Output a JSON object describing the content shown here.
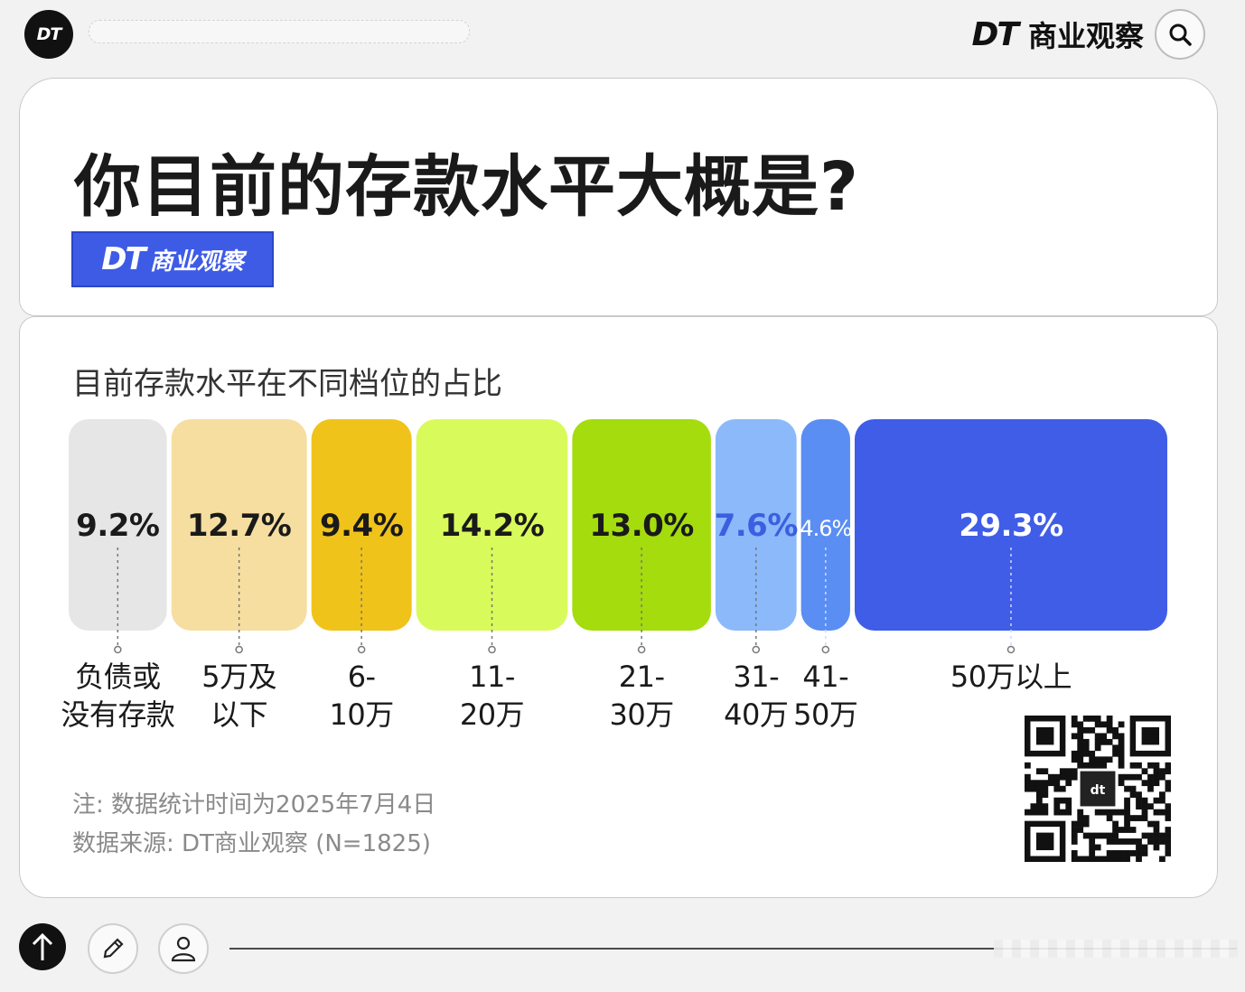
{
  "header": {
    "logo_text": "DT",
    "brand_dt": "DT",
    "brand_cn": "商业观察",
    "search_icon": "search-icon"
  },
  "title": "你目前的存款水平大概是?",
  "badge": {
    "dt": "DT",
    "cn": "商业观察"
  },
  "colors": {
    "brand_blue": "#3e5be6",
    "bar_colors": [
      "#e6e6e6",
      "#f6dea0",
      "#f0c31b",
      "#d9fa5b",
      "#a4dc0e",
      "#8cb9fa",
      "#5b8ef2",
      "#3f5de7"
    ]
  },
  "chart_data": {
    "type": "bar",
    "subtitle": "目前存款水平在不同档位的占比",
    "categories": [
      "负债或没有存款",
      "5万及以下",
      "6-10万",
      "11-20万",
      "21-30万",
      "31-40万",
      "41-50万",
      "50万以上"
    ],
    "category_labels": [
      [
        "负债或",
        "没有存款"
      ],
      [
        "5万及",
        "以下"
      ],
      [
        "6-",
        "10万"
      ],
      [
        "11-",
        "20万"
      ],
      [
        "21-",
        "30万"
      ],
      [
        "31-",
        "40万"
      ],
      [
        "41-",
        "50万"
      ],
      [
        "50万以上"
      ]
    ],
    "values": [
      9.2,
      12.7,
      9.4,
      14.2,
      13.0,
      7.6,
      4.6,
      29.3
    ],
    "value_labels": [
      "9.2%",
      "12.7%",
      "9.4%",
      "14.2%",
      "13.0%",
      "7.6%",
      "4.6%",
      "29.3%"
    ],
    "unit": "%",
    "layout_note": "marimekko-style: bar widths proportional to share"
  },
  "footer": {
    "note": "注: 数据统计时间为2025年7月4日",
    "source": "数据来源: DT商业观察 (N=1825)"
  },
  "bottom": {
    "icons": [
      "arrow-up-icon",
      "pencil-icon",
      "user-icon"
    ]
  }
}
